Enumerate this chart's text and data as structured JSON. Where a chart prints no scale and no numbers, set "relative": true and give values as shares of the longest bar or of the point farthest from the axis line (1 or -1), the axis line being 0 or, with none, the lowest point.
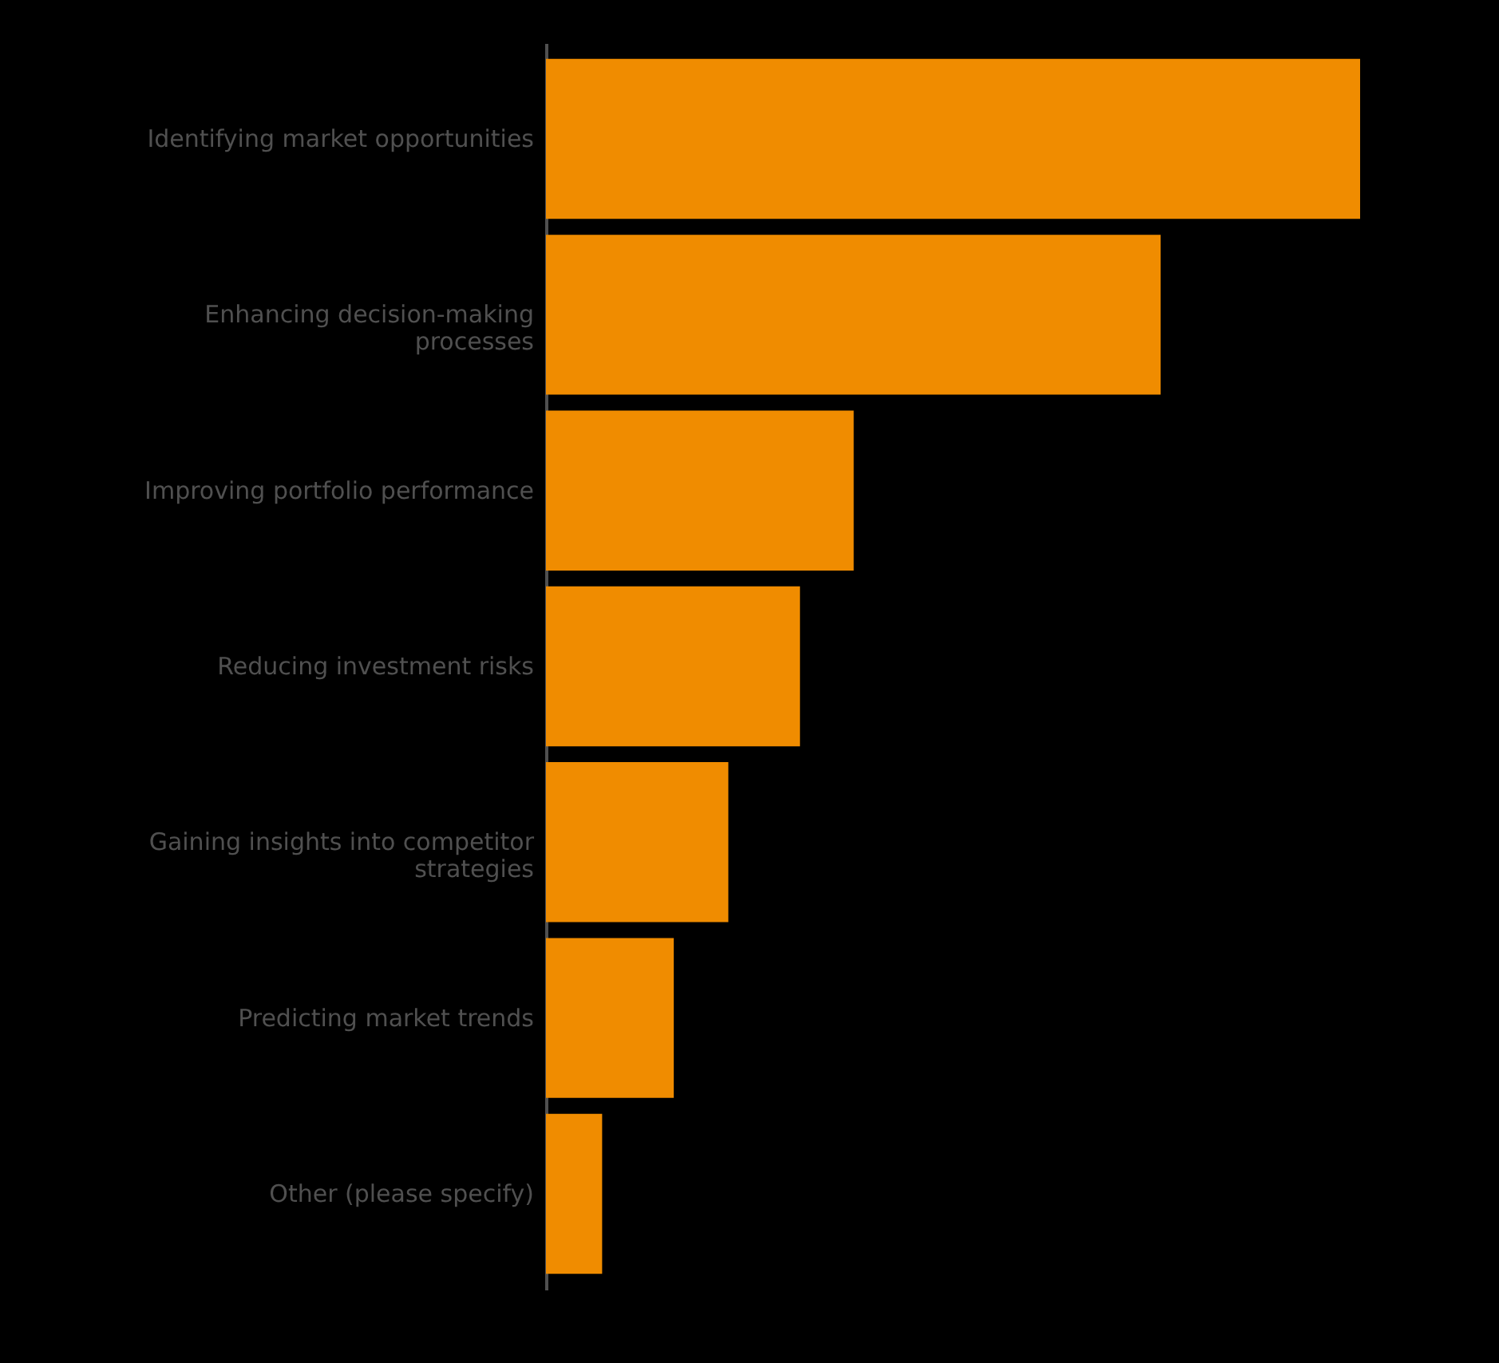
{
  "chart_data": {
    "type": "bar",
    "orientation": "horizontal",
    "relative": true,
    "categories": [
      "Identifying market opportunities",
      "Enhancing decision-making processes",
      "Improving portfolio performance",
      "Reducing investment risks",
      "Gaining insights into competitor strategies",
      "Predicting market trends",
      "Other (please specify)"
    ],
    "values": [
      1,
      0.755,
      0.378,
      0.312,
      0.224,
      0.157,
      0.069
    ],
    "color": "#f08c00"
  }
}
